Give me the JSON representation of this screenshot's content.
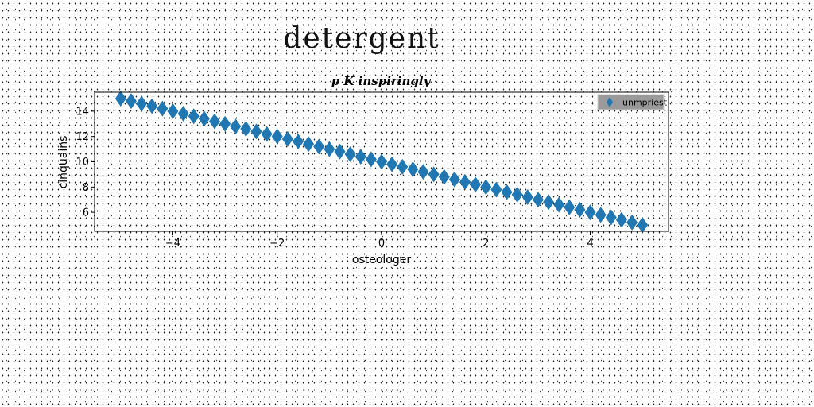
{
  "figure_title": "detergent",
  "chart_data": {
    "type": "scatter",
    "title": "p K inspiringly",
    "xlabel": "osteologer",
    "ylabel": "cinquains",
    "xlim": [
      -5.5,
      5.5
    ],
    "ylim": [
      4.5,
      15.5
    ],
    "xticks": [
      -4,
      -2,
      0,
      2,
      4
    ],
    "yticks": [
      6,
      8,
      10,
      12,
      14
    ],
    "legend": "top-right",
    "grid": false,
    "series": [
      {
        "name": "unmpriest",
        "color": "#1f77b4",
        "marker": "diamond",
        "x": [
          -5.0,
          -4.8,
          -4.6,
          -4.4,
          -4.2,
          -4.0,
          -3.8,
          -3.6,
          -3.4,
          -3.2,
          -3.0,
          -2.8,
          -2.6,
          -2.4,
          -2.2,
          -2.0,
          -1.8,
          -1.6,
          -1.4,
          -1.2,
          -1.0,
          -0.8,
          -0.6,
          -0.4,
          -0.2,
          0.0,
          0.2,
          0.4,
          0.6,
          0.8,
          1.0,
          1.2,
          1.4,
          1.6,
          1.8,
          2.0,
          2.2,
          2.4,
          2.6,
          2.8,
          3.0,
          3.2,
          3.4,
          3.6,
          3.8,
          4.0,
          4.2,
          4.4,
          4.6,
          4.8,
          5.0
        ],
        "y": [
          15.0,
          14.8,
          14.6,
          14.4,
          14.2,
          14.0,
          13.8,
          13.6,
          13.4,
          13.2,
          13.0,
          12.8,
          12.6,
          12.4,
          12.2,
          12.0,
          11.8,
          11.6,
          11.4,
          11.2,
          11.0,
          10.8,
          10.6,
          10.4,
          10.2,
          10.0,
          9.8,
          9.6,
          9.4,
          9.2,
          9.0,
          8.8,
          8.6,
          8.4,
          8.2,
          8.0,
          7.8,
          7.6,
          7.4,
          7.2,
          7.0,
          6.8,
          6.6,
          6.4,
          6.2,
          6.0,
          5.8,
          5.6,
          5.4,
          5.2,
          5.0
        ]
      }
    ]
  }
}
